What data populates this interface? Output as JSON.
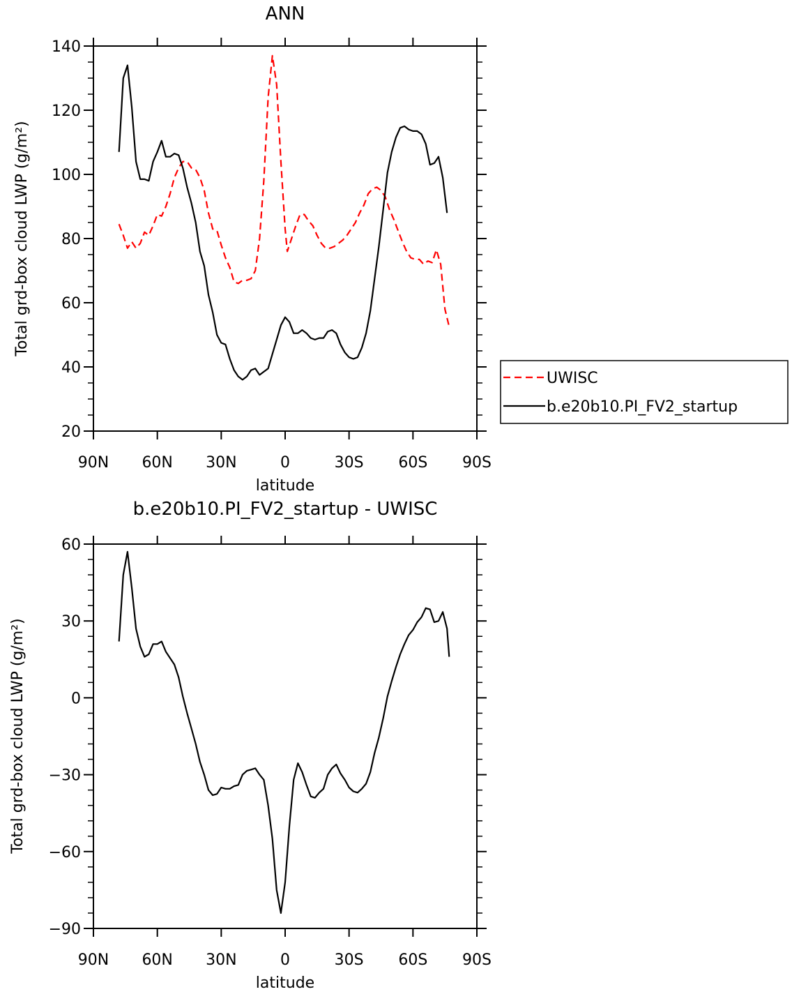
{
  "chart_data": [
    {
      "type": "line",
      "title": "ANN",
      "xlabel": "latitude",
      "ylabel": "Total grd-box cloud LWP (g/m²)",
      "ylim": [
        20,
        140
      ],
      "yticks": [
        20,
        40,
        60,
        80,
        100,
        120,
        140
      ],
      "xlim": [
        -90,
        90
      ],
      "xticks": [
        -90,
        -60,
        -30,
        0,
        30,
        60,
        90
      ],
      "xtick_labels": [
        "90N",
        "60N",
        "30N",
        "0",
        "30S",
        "60S",
        "90S"
      ],
      "grid": false,
      "legend": "outside-right",
      "series": [
        {
          "name": "UWISC",
          "color": "#ff0000",
          "dash": true,
          "points": [
            [
              -78,
              84.5
            ],
            [
              -76,
              81
            ],
            [
              -74,
              77
            ],
            [
              -72,
              79
            ],
            [
              -70,
              77
            ],
            [
              -68,
              78.5
            ],
            [
              -66,
              82
            ],
            [
              -64,
              81
            ],
            [
              -62,
              84
            ],
            [
              -60,
              87.5
            ],
            [
              -58,
              87
            ],
            [
              -56,
              90
            ],
            [
              -54,
              94
            ],
            [
              -52,
              99
            ],
            [
              -50,
              102
            ],
            [
              -48,
              104
            ],
            [
              -46,
              104
            ],
            [
              -44,
              102
            ],
            [
              -42,
              101.5
            ],
            [
              -40,
              99
            ],
            [
              -38,
              95
            ],
            [
              -36,
              88
            ],
            [
              -34,
              83
            ],
            [
              -32,
              82.5
            ],
            [
              -30,
              78
            ],
            [
              -28,
              74
            ],
            [
              -26,
              71
            ],
            [
              -24,
              66.5
            ],
            [
              -22,
              66
            ],
            [
              -20,
              67
            ],
            [
              -18,
              67
            ],
            [
              -16,
              67.5
            ],
            [
              -14,
              70
            ],
            [
              -12,
              80
            ],
            [
              -10,
              98
            ],
            [
              -8,
              124
            ],
            [
              -6,
              137
            ],
            [
              -4,
              128
            ],
            [
              -2,
              104
            ],
            [
              0,
              83
            ],
            [
              1,
              76
            ],
            [
              3,
              80
            ],
            [
              5,
              84
            ],
            [
              7,
              87.5
            ],
            [
              9,
              87.5
            ],
            [
              11,
              85.5
            ],
            [
              13,
              84
            ],
            [
              15,
              81
            ],
            [
              17,
              78.5
            ],
            [
              19,
              77
            ],
            [
              21,
              77
            ],
            [
              23,
              77.5
            ],
            [
              25,
              78.5
            ],
            [
              27,
              79.5
            ],
            [
              29,
              81
            ],
            [
              31,
              83
            ],
            [
              33,
              85
            ],
            [
              35,
              88
            ],
            [
              37,
              90.5
            ],
            [
              39,
              94
            ],
            [
              41,
              95.5
            ],
            [
              43,
              96
            ],
            [
              45,
              95
            ],
            [
              47,
              93
            ],
            [
              49,
              89
            ],
            [
              51,
              86
            ],
            [
              53,
              82.5
            ],
            [
              55,
              79
            ],
            [
              57,
              76
            ],
            [
              59,
              74
            ],
            [
              61,
              73.5
            ],
            [
              63,
              73.5
            ],
            [
              65,
              72
            ],
            [
              67,
              73
            ],
            [
              69,
              72.5
            ],
            [
              71,
              76.5
            ],
            [
              73,
              72
            ],
            [
              75,
              58
            ],
            [
              77,
              52.5
            ]
          ]
        },
        {
          "name": "b.e20b10.PI_FV2_startup",
          "color": "#000000",
          "dash": false,
          "points": [
            [
              -78,
              107
            ],
            [
              -76,
              130
            ],
            [
              -74,
              134
            ],
            [
              -72,
              121
            ],
            [
              -70,
              104
            ],
            [
              -68,
              98.5
            ],
            [
              -66,
              98.5
            ],
            [
              -64,
              98
            ],
            [
              -62,
              104
            ],
            [
              -60,
              107
            ],
            [
              -58,
              110.5
            ],
            [
              -56,
              105.5
            ],
            [
              -54,
              105.5
            ],
            [
              -52,
              106.5
            ],
            [
              -50,
              106
            ],
            [
              -48,
              102
            ],
            [
              -46,
              96
            ],
            [
              -44,
              91
            ],
            [
              -42,
              85
            ],
            [
              -40,
              76
            ],
            [
              -38,
              71.5
            ],
            [
              -36,
              62.5
            ],
            [
              -34,
              57
            ],
            [
              -32,
              50
            ],
            [
              -30,
              47.5
            ],
            [
              -28,
              47
            ],
            [
              -26,
              42.5
            ],
            [
              -24,
              39
            ],
            [
              -22,
              37
            ],
            [
              -20,
              36
            ],
            [
              -18,
              37
            ],
            [
              -16,
              39
            ],
            [
              -14,
              39.5
            ],
            [
              -12,
              37.5
            ],
            [
              -10,
              38.5
            ],
            [
              -8,
              39.5
            ],
            [
              -6,
              44
            ],
            [
              -4,
              48.5
            ],
            [
              -2,
              53
            ],
            [
              0,
              55.5
            ],
            [
              2,
              54
            ],
            [
              4,
              50.5
            ],
            [
              6,
              50.5
            ],
            [
              8,
              51.5
            ],
            [
              10,
              50.5
            ],
            [
              12,
              49
            ],
            [
              14,
              48.5
            ],
            [
              16,
              49
            ],
            [
              18,
              49
            ],
            [
              20,
              51
            ],
            [
              22,
              51.5
            ],
            [
              24,
              50.5
            ],
            [
              26,
              47
            ],
            [
              28,
              44.5
            ],
            [
              30,
              43
            ],
            [
              32,
              42.5
            ],
            [
              34,
              43
            ],
            [
              36,
              46
            ],
            [
              38,
              50.5
            ],
            [
              40,
              57.5
            ],
            [
              42,
              67.5
            ],
            [
              44,
              77.5
            ],
            [
              46,
              89
            ],
            [
              48,
              100.5
            ],
            [
              50,
              107
            ],
            [
              52,
              111.5
            ],
            [
              54,
              114.5
            ],
            [
              56,
              115
            ],
            [
              58,
              114
            ],
            [
              60,
              113.5
            ],
            [
              62,
              113.5
            ],
            [
              64,
              112.5
            ],
            [
              66,
              109.5
            ],
            [
              68,
              103
            ],
            [
              70,
              103.5
            ],
            [
              72,
              105.5
            ],
            [
              74,
              99
            ],
            [
              76,
              88
            ]
          ]
        }
      ]
    },
    {
      "type": "line",
      "title": "b.e20b10.PI_FV2_startup - UWISC",
      "xlabel": "latitude",
      "ylabel": "Total grd-box cloud LWP (g/m²)",
      "ylim": [
        -90,
        60
      ],
      "yticks": [
        -90,
        -60,
        -30,
        0,
        30,
        60
      ],
      "ytick_labels": [
        "−90",
        "−60",
        "−30",
        "0",
        "30",
        "60"
      ],
      "xlim": [
        -90,
        90
      ],
      "xticks": [
        -90,
        -60,
        -30,
        0,
        30,
        60,
        90
      ],
      "xtick_labels": [
        "90N",
        "60N",
        "30N",
        "0",
        "30S",
        "60S",
        "90S"
      ],
      "grid": false,
      "series": [
        {
          "color": "#000000",
          "dash": false,
          "points": [
            [
              -78,
              22
            ],
            [
              -76,
              48
            ],
            [
              -74,
              57
            ],
            [
              -72,
              43
            ],
            [
              -70,
              27
            ],
            [
              -68,
              20
            ],
            [
              -66,
              16
            ],
            [
              -64,
              17
            ],
            [
              -62,
              21
            ],
            [
              -60,
              21
            ],
            [
              -58,
              22
            ],
            [
              -56,
              18
            ],
            [
              -54,
              15.5
            ],
            [
              -52,
              13
            ],
            [
              -50,
              8
            ],
            [
              -48,
              0.5
            ],
            [
              -46,
              -6
            ],
            [
              -44,
              -12
            ],
            [
              -42,
              -18
            ],
            [
              -40,
              -25
            ],
            [
              -38,
              -30
            ],
            [
              -36,
              -36
            ],
            [
              -34,
              -38
            ],
            [
              -32,
              -37.5
            ],
            [
              -30,
              -35
            ],
            [
              -28,
              -35.5
            ],
            [
              -26,
              -35.5
            ],
            [
              -24,
              -34.5
            ],
            [
              -22,
              -34
            ],
            [
              -20,
              -30
            ],
            [
              -18,
              -28.5
            ],
            [
              -16,
              -28
            ],
            [
              -14,
              -27.5
            ],
            [
              -12,
              -30
            ],
            [
              -10,
              -32
            ],
            [
              -8,
              -42
            ],
            [
              -6,
              -55
            ],
            [
              -4,
              -75
            ],
            [
              -2,
              -84
            ],
            [
              0,
              -72
            ],
            [
              2,
              -50
            ],
            [
              4,
              -32
            ],
            [
              6,
              -25.5
            ],
            [
              8,
              -29
            ],
            [
              10,
              -34
            ],
            [
              12,
              -38.5
            ],
            [
              14,
              -39
            ],
            [
              16,
              -37
            ],
            [
              18,
              -35.5
            ],
            [
              20,
              -30
            ],
            [
              22,
              -27.5
            ],
            [
              24,
              -26
            ],
            [
              26,
              -29.5
            ],
            [
              28,
              -32
            ],
            [
              30,
              -35
            ],
            [
              32,
              -36.5
            ],
            [
              34,
              -37
            ],
            [
              36,
              -35.5
            ],
            [
              38,
              -33.5
            ],
            [
              40,
              -29
            ],
            [
              42,
              -21.5
            ],
            [
              44,
              -15.5
            ],
            [
              46,
              -8
            ],
            [
              48,
              0.5
            ],
            [
              50,
              6.5
            ],
            [
              52,
              12
            ],
            [
              54,
              17
            ],
            [
              56,
              21
            ],
            [
              58,
              24.5
            ],
            [
              60,
              26.5
            ],
            [
              62,
              29.5
            ],
            [
              64,
              31.5
            ],
            [
              66,
              35
            ],
            [
              68,
              34.5
            ],
            [
              70,
              29.5
            ],
            [
              72,
              30
            ],
            [
              74,
              33.5
            ],
            [
              76,
              27
            ],
            [
              77,
              16
            ]
          ]
        }
      ]
    }
  ]
}
